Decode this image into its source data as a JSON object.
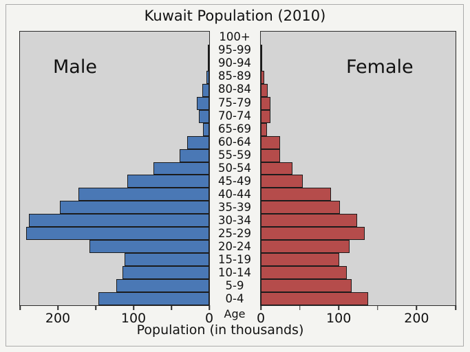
{
  "title": "Kuwait Population (2010)",
  "xlabel": "Population (in thousands)",
  "age_axis_label": "Age",
  "panel_labels": {
    "left": "Male",
    "right": "Female"
  },
  "colors": {
    "male_bar": "#4a78b5",
    "female_bar": "#b54c4b",
    "bar_outline": "#1b1b1b",
    "plot_background": "#d4d4d4",
    "figure_background": "#f4f4f1",
    "spine": "#2b2b2b",
    "text": "#111111"
  },
  "axis": {
    "max_each_side": 250,
    "tick_step": 50,
    "labeled_tick_values": [
      200,
      100,
      0
    ],
    "male_tick_labels_left_to_right": [
      "200",
      "100",
      "0"
    ],
    "female_tick_labels_left_to_right": [
      "0",
      "100",
      "200"
    ]
  },
  "chart_data": {
    "type": "bar",
    "subtype": "population-pyramid",
    "title": "Kuwait Population (2010)",
    "xlabel": "Population (in thousands)",
    "ylabel": "Age",
    "xlim_each_side": [
      0,
      250
    ],
    "grid": false,
    "categories_top_to_bottom": [
      "100+",
      "95-99",
      "90-94",
      "85-89",
      "80-84",
      "75-79",
      "70-74",
      "65-69",
      "60-64",
      "55-59",
      "50-54",
      "45-49",
      "40-44",
      "35-39",
      "30-34",
      "25-29",
      "20-24",
      "15-19",
      "10-14",
      "5-9",
      "0-4"
    ],
    "series": [
      {
        "name": "Male",
        "side": "left",
        "color": "#4a78b5",
        "values": [
          0,
          1,
          2,
          4,
          9,
          16,
          14,
          8,
          29,
          39,
          74,
          108,
          173,
          197,
          238,
          242,
          158,
          112,
          115,
          123,
          146
        ]
      },
      {
        "name": "Female",
        "side": "right",
        "color": "#b54c4b",
        "values": [
          0,
          1,
          2,
          4,
          9,
          12,
          12,
          8,
          25,
          25,
          41,
          54,
          90,
          102,
          124,
          133,
          114,
          101,
          110,
          117,
          138
        ]
      }
    ]
  }
}
